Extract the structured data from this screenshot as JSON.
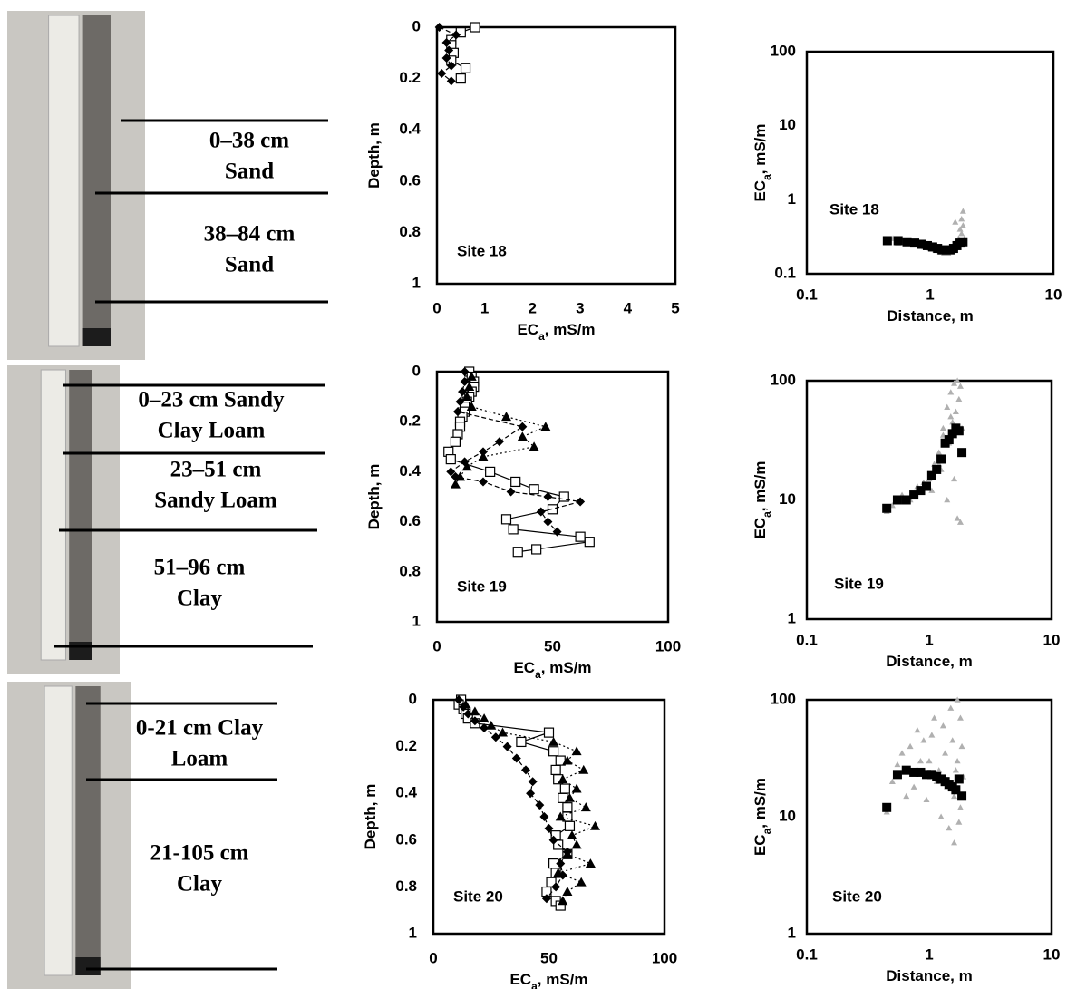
{
  "soil_cores": [
    {
      "horizons": [
        [
          "0–38 cm",
          "Sand"
        ],
        [
          "38–84 cm",
          "Sand"
        ]
      ]
    },
    {
      "horizons": [
        [
          "0–23 cm Sandy",
          "Clay Loam"
        ],
        [
          "23–51 cm",
          "Sandy Loam"
        ],
        [
          "51–96 cm",
          "Clay"
        ]
      ]
    },
    {
      "horizons": [
        [
          "0-21 cm Clay",
          "Loam"
        ],
        [
          "21-105 cm",
          "Clay"
        ]
      ]
    }
  ],
  "chart_data": [
    {
      "type": "depth-profile",
      "annotation": "Site 18",
      "x_label": "EC",
      "x_label_sub": "a",
      "x_label_unit": ", mS/m",
      "y_label": "Depth, m",
      "xlim": [
        0,
        5
      ],
      "xticks": [
        0,
        1,
        2,
        3,
        4,
        5
      ],
      "ylim": [
        0,
        1
      ],
      "yticks": [
        0,
        0.2,
        0.4,
        0.6,
        0.8,
        1
      ],
      "y_inverted": true,
      "series": [
        {
          "color": "#000000",
          "marker": "square-open",
          "line": "solid",
          "x": [
            0.8,
            0.5,
            0.3,
            0.3,
            0.35,
            0.3,
            0.6,
            0.5
          ],
          "values": [
            0,
            0.02,
            0.05,
            0.07,
            0.1,
            0.13,
            0.16,
            0.2
          ]
        },
        {
          "color": "#000000",
          "marker": "diamond",
          "line": "dashed",
          "x": [
            0.05,
            0.4,
            0.2,
            0.25,
            0.2,
            0.3,
            0.1,
            0.3
          ],
          "values": [
            0,
            0.03,
            0.06,
            0.09,
            0.12,
            0.15,
            0.18,
            0.21
          ]
        }
      ]
    },
    {
      "type": "log-scatter",
      "annotation": "Site 18",
      "x_label": "Distance, m",
      "y_label": "EC",
      "y_label_sub": "a",
      "y_label_unit": ", mS/m",
      "x_log": true,
      "y_log": true,
      "xlim": [
        0.1,
        10
      ],
      "xticks": [
        0.1,
        1,
        10
      ],
      "ylim": [
        0.1,
        100
      ],
      "yticks": [
        0.1,
        1,
        10,
        100
      ],
      "series": [
        {
          "color": "#b0b0b0",
          "marker": "triangle",
          "x": [
            0.45,
            0.5,
            0.55,
            0.6,
            0.7,
            0.8,
            0.9,
            1.0,
            1.1,
            1.2,
            1.3,
            1.4,
            1.5,
            1.6,
            1.7,
            1.75,
            1.8,
            1.85,
            1.8,
            1.7,
            1.6,
            1.9,
            1.85,
            1.5,
            1.3
          ],
          "values": [
            0.27,
            0.3,
            0.26,
            0.28,
            0.27,
            0.25,
            0.23,
            0.22,
            0.21,
            0.2,
            0.19,
            0.19,
            0.2,
            0.22,
            0.3,
            0.4,
            0.55,
            0.7,
            0.35,
            0.25,
            0.5,
            0.3,
            0.45,
            0.23,
            0.21
          ]
        },
        {
          "color": "#000000",
          "marker": "square",
          "x": [
            0.45,
            0.55,
            0.65,
            0.75,
            0.85,
            0.95,
            1.05,
            1.15,
            1.25,
            1.35,
            1.45,
            1.55,
            1.65,
            1.75,
            1.85
          ],
          "values": [
            0.28,
            0.28,
            0.27,
            0.26,
            0.25,
            0.24,
            0.23,
            0.22,
            0.21,
            0.21,
            0.21,
            0.22,
            0.24,
            0.26,
            0.27
          ]
        }
      ]
    },
    {
      "type": "depth-profile",
      "annotation": "Site 19",
      "x_label": "EC",
      "x_label_sub": "a",
      "x_label_unit": ", mS/m",
      "y_label": "Depth, m",
      "xlim": [
        0,
        100
      ],
      "xticks": [
        0,
        50,
        100
      ],
      "ylim": [
        0,
        1
      ],
      "yticks": [
        0,
        0.2,
        0.4,
        0.6,
        0.8,
        1
      ],
      "y_inverted": true,
      "series": [
        {
          "color": "#000000",
          "marker": "square-open",
          "line": "solid",
          "x": [
            14,
            15,
            16,
            16,
            15,
            14,
            13,
            12,
            12,
            11,
            10,
            10,
            9,
            8,
            5,
            6,
            23,
            34,
            42,
            55,
            50,
            30,
            33,
            62,
            66,
            43,
            35
          ],
          "values": [
            0,
            0.02,
            0.04,
            0.06,
            0.08,
            0.1,
            0.12,
            0.14,
            0.16,
            0.18,
            0.2,
            0.22,
            0.25,
            0.28,
            0.32,
            0.35,
            0.4,
            0.44,
            0.47,
            0.5,
            0.55,
            0.59,
            0.63,
            0.66,
            0.68,
            0.71,
            0.72
          ]
        },
        {
          "color": "#000000",
          "marker": "diamond",
          "line": "dashed",
          "x": [
            12,
            12,
            11,
            10,
            9,
            37,
            27,
            20,
            12,
            6,
            8,
            20,
            32,
            48,
            62,
            45,
            48,
            52
          ],
          "values": [
            0,
            0.04,
            0.08,
            0.12,
            0.16,
            0.22,
            0.28,
            0.32,
            0.36,
            0.4,
            0.42,
            0.44,
            0.48,
            0.5,
            0.52,
            0.56,
            0.6,
            0.64
          ]
        },
        {
          "color": "#000000",
          "marker": "triangle",
          "line": "dotted",
          "x": [
            15,
            14,
            13,
            15,
            30,
            47,
            37,
            42,
            20,
            13,
            10,
            8
          ],
          "values": [
            0.02,
            0.06,
            0.1,
            0.14,
            0.18,
            0.22,
            0.26,
            0.3,
            0.34,
            0.38,
            0.42,
            0.45
          ]
        }
      ]
    },
    {
      "type": "log-scatter",
      "annotation": "Site 19",
      "x_label": "Distance, m",
      "y_label": "EC",
      "y_label_sub": "a",
      "y_label_unit": ", mS/m",
      "x_log": true,
      "y_log": true,
      "xlim": [
        0.1,
        10
      ],
      "xticks": [
        0.1,
        1,
        10
      ],
      "ylim": [
        1,
        100
      ],
      "yticks": [
        1,
        10,
        100
      ],
      "series": [
        {
          "color": "#b0b0b0",
          "marker": "triangle",
          "x": [
            0.45,
            0.5,
            0.6,
            0.7,
            0.8,
            0.9,
            1.0,
            1.05,
            1.1,
            1.2,
            1.25,
            1.3,
            1.4,
            1.45,
            1.5,
            1.55,
            1.6,
            1.65,
            1.7,
            1.75,
            1.8,
            1.85,
            1.9,
            1.6,
            1.4,
            1.2,
            1.7,
            1.5,
            1.8,
            1.3
          ],
          "values": [
            8,
            9,
            11,
            10,
            13,
            14,
            15,
            12,
            20,
            25,
            18,
            40,
            60,
            30,
            80,
            45,
            95,
            55,
            100,
            70,
            90,
            40,
            25,
            15,
            10,
            20,
            7,
            50,
            6.5,
            35
          ]
        },
        {
          "color": "#000000",
          "marker": "square",
          "x": [
            0.45,
            0.55,
            0.65,
            0.75,
            0.85,
            0.95,
            1.05,
            1.15,
            1.25,
            1.35,
            1.45,
            1.55,
            1.65,
            1.75,
            1.85
          ],
          "values": [
            8.5,
            10,
            10,
            11,
            12,
            13,
            16,
            18,
            22,
            30,
            32,
            36,
            40,
            38,
            25
          ]
        }
      ]
    },
    {
      "type": "depth-profile",
      "annotation": "Site 20",
      "x_label": "EC",
      "x_label_sub": "a",
      "x_label_unit": ", mS/m",
      "y_label": "Depth, m",
      "xlim": [
        0,
        100
      ],
      "xticks": [
        0,
        50,
        100
      ],
      "ylim": [
        0,
        1
      ],
      "yticks": [
        0,
        0.2,
        0.4,
        0.6,
        0.8,
        1
      ],
      "y_inverted": true,
      "series": [
        {
          "color": "#000000",
          "marker": "square-open",
          "line": "solid",
          "x": [
            12,
            11,
            13,
            14,
            15,
            18,
            50,
            38,
            52,
            55,
            53,
            54,
            57,
            56,
            58,
            58,
            59,
            53,
            54,
            58,
            52,
            53,
            51,
            49,
            53,
            55
          ],
          "values": [
            0,
            0.02,
            0.04,
            0.06,
            0.08,
            0.1,
            0.14,
            0.18,
            0.22,
            0.26,
            0.3,
            0.34,
            0.38,
            0.42,
            0.46,
            0.5,
            0.54,
            0.58,
            0.62,
            0.66,
            0.7,
            0.74,
            0.78,
            0.82,
            0.86,
            0.88
          ]
        },
        {
          "color": "#000000",
          "marker": "diamond",
          "line": "dashed",
          "x": [
            11,
            13,
            15,
            18,
            22,
            27,
            32,
            36,
            40,
            43,
            42,
            46,
            48,
            50,
            52,
            58,
            55,
            56,
            53,
            49
          ],
          "values": [
            0,
            0.03,
            0.06,
            0.09,
            0.12,
            0.16,
            0.2,
            0.25,
            0.3,
            0.35,
            0.4,
            0.45,
            0.5,
            0.55,
            0.6,
            0.65,
            0.7,
            0.75,
            0.8,
            0.85
          ]
        },
        {
          "color": "#000000",
          "marker": "triangle",
          "line": "dotted",
          "x": [
            14,
            18,
            22,
            25,
            30,
            52,
            62,
            58,
            65,
            56,
            62,
            59,
            66,
            55,
            70,
            60,
            62,
            58,
            68,
            54,
            64,
            58,
            56
          ],
          "values": [
            0.02,
            0.05,
            0.08,
            0.11,
            0.14,
            0.18,
            0.22,
            0.26,
            0.3,
            0.34,
            0.38,
            0.42,
            0.46,
            0.5,
            0.54,
            0.58,
            0.62,
            0.66,
            0.7,
            0.74,
            0.78,
            0.82,
            0.86
          ]
        }
      ]
    },
    {
      "type": "log-scatter",
      "annotation": "Site 20",
      "x_label": "Distance, m",
      "y_label": "EC",
      "y_label_sub": "a",
      "y_label_unit": ", mS/m",
      "x_log": true,
      "y_log": true,
      "xlim": [
        0.1,
        10
      ],
      "xticks": [
        0.1,
        1,
        10
      ],
      "ylim": [
        1,
        100
      ],
      "yticks": [
        1,
        10,
        100
      ],
      "series": [
        {
          "color": "#b0b0b0",
          "marker": "triangle",
          "x": [
            0.45,
            0.5,
            0.55,
            0.6,
            0.7,
            0.8,
            0.9,
            1.0,
            1.1,
            1.2,
            1.3,
            1.4,
            1.5,
            1.6,
            1.7,
            1.8,
            1.85,
            1.9,
            0.65,
            0.75,
            0.85,
            0.95,
            1.05,
            1.15,
            1.25,
            1.35,
            1.45,
            1.55,
            1.65,
            1.75,
            1.8,
            1.7,
            1.6
          ],
          "values": [
            11,
            20,
            28,
            35,
            40,
            55,
            45,
            30,
            70,
            25,
            60,
            18,
            85,
            15,
            100,
            12,
            40,
            22,
            15,
            18,
            30,
            14,
            50,
            20,
            10,
            35,
            8,
            45,
            25,
            9,
            70,
            30,
            6
          ]
        },
        {
          "color": "#000000",
          "marker": "square",
          "x": [
            0.45,
            0.55,
            0.65,
            0.75,
            0.85,
            0.95,
            1.05,
            1.15,
            1.25,
            1.35,
            1.45,
            1.55,
            1.65,
            1.75,
            1.85
          ],
          "values": [
            12,
            23,
            25,
            24,
            24,
            23,
            23,
            22,
            21,
            20,
            19,
            18,
            17,
            21,
            15
          ]
        }
      ]
    }
  ]
}
